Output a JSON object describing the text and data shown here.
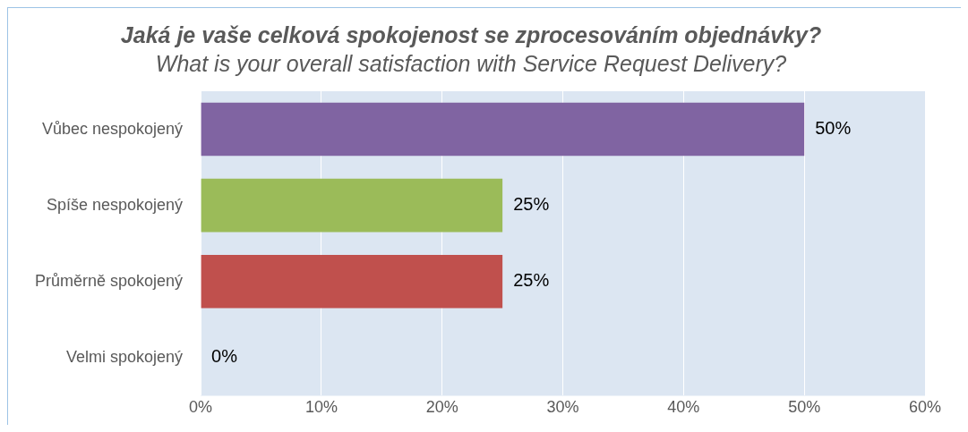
{
  "chart_data": {
    "type": "bar",
    "orientation": "horizontal",
    "title": "Jaká je vaše celková spokojenost se zprocesováním objednávky?",
    "subtitle": "What is your overall satisfaction with Service Request Delivery?",
    "categories": [
      "Vůbec nespokojený",
      "Spíše nespokojený",
      "Průměrně spokojený",
      "Velmi spokojený"
    ],
    "values": [
      50,
      25,
      25,
      0
    ],
    "colors": [
      "#8064a2",
      "#9bbb59",
      "#c0504d",
      "#4f81bd"
    ],
    "value_labels": [
      "50%",
      "25%",
      "25%",
      "0%"
    ],
    "xlim": [
      0,
      60
    ],
    "xticks": [
      {
        "value": 0,
        "label": "0%"
      },
      {
        "value": 10,
        "label": "10%"
      },
      {
        "value": 20,
        "label": "20%"
      },
      {
        "value": 30,
        "label": "30%"
      },
      {
        "value": 40,
        "label": "40%"
      },
      {
        "value": 50,
        "label": "50%"
      },
      {
        "value": 60,
        "label": "60%"
      }
    ],
    "grid": "x",
    "legend": false
  }
}
